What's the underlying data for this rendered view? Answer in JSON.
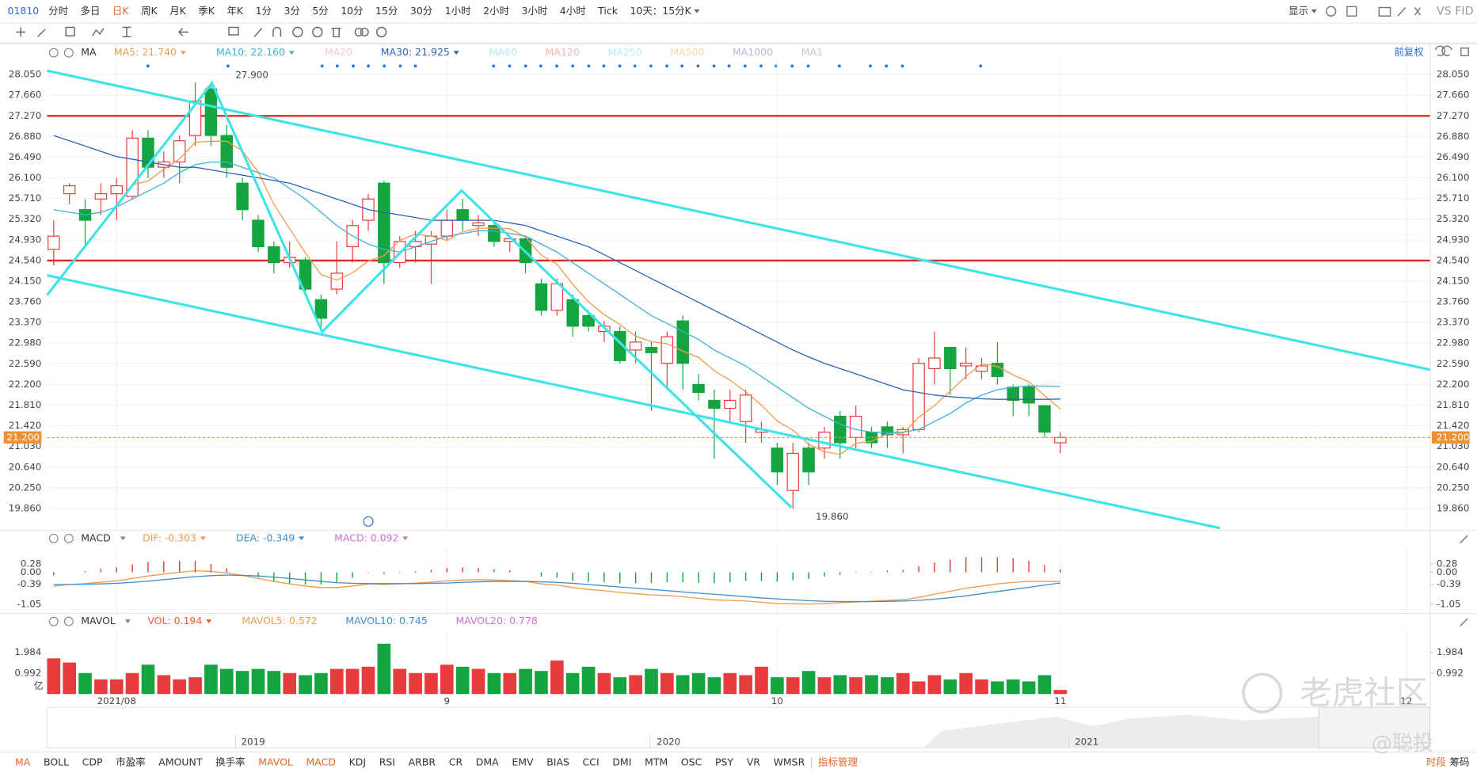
{
  "toolbar": {
    "symbol": "01810",
    "periods": [
      "分时",
      "多日",
      "日K",
      "周K",
      "月K",
      "季K",
      "年K",
      "1分",
      "3分",
      "5分",
      "10分",
      "15分",
      "30分",
      "1小时",
      "2小时",
      "3小时",
      "4小时",
      "Tick",
      "10天：15分K"
    ],
    "selected_period": 2,
    "display_menu": "显示",
    "compare": "VS FID"
  },
  "adjust_mode": "前复权",
  "x_axis": {
    "xlim": [
      -0.42,
      87.5
    ],
    "ticks": [
      {
        "value": 4,
        "label": "2021/08"
      },
      {
        "value": 25,
        "label": "9"
      },
      {
        "value": 46,
        "label": "10"
      },
      {
        "value": 64,
        "label": "11"
      },
      {
        "value": 86,
        "label": "12"
      }
    ]
  },
  "chart_data": [
    {
      "type": "candlestick",
      "title": "MA",
      "up_color": "#e83b3b",
      "down_color": "#14a541",
      "ylim": [
        19.49,
        28.3
      ],
      "yticks": [
        {
          "value": 28.05,
          "label": "28.050"
        },
        {
          "value": 27.66,
          "label": "27.660"
        },
        {
          "value": 27.27,
          "label": "27.270"
        },
        {
          "value": 26.88,
          "label": "26.880"
        },
        {
          "value": 26.49,
          "label": "26.490"
        },
        {
          "value": 26.1,
          "label": "26.100"
        },
        {
          "value": 25.71,
          "label": "25.710"
        },
        {
          "value": 25.32,
          "label": "25.320"
        },
        {
          "value": 24.93,
          "label": "24.930"
        },
        {
          "value": 24.54,
          "label": "24.540"
        },
        {
          "value": 24.15,
          "label": "24.150"
        },
        {
          "value": 23.76,
          "label": "23.760"
        },
        {
          "value": 23.37,
          "label": "23.370"
        },
        {
          "value": 22.98,
          "label": "22.980"
        },
        {
          "value": 22.59,
          "label": "22.590"
        },
        {
          "value": 22.2,
          "label": "22.200"
        },
        {
          "value": 21.81,
          "label": "21.810"
        },
        {
          "value": 21.42,
          "label": "21.420"
        },
        {
          "value": 21.03,
          "label": "21.030"
        },
        {
          "value": 20.64,
          "label": "20.640"
        },
        {
          "value": 20.25,
          "label": "20.250"
        },
        {
          "value": 19.86,
          "label": "19.860"
        }
      ],
      "levels": [
        27.27,
        24.54
      ],
      "level_color": "#d42a2a",
      "last_price": {
        "value": 21.2,
        "label": "21.200"
      },
      "annotations": [
        "27.900",
        "19.860"
      ],
      "candles": {
        "open": [
          24.75,
          25.8,
          25.5,
          25.7,
          25.8,
          25.75,
          26.85,
          26.3,
          26.4,
          26.9,
          27.78,
          26.9,
          26.0,
          25.3,
          24.8,
          24.5,
          24.55,
          23.8,
          24.0,
          24.8,
          25.3,
          26.0,
          24.5,
          24.8,
          24.85,
          25.0,
          25.5,
          25.2,
          25.2,
          24.9,
          24.95,
          24.1,
          23.6,
          23.8,
          23.5,
          23.2,
          23.2,
          22.85,
          22.9,
          22.6,
          23.4,
          22.2,
          21.9,
          21.75,
          21.5,
          21.3,
          21.0,
          20.2,
          21.0,
          21.0,
          21.6,
          21.2,
          21.3,
          21.4,
          21.25,
          21.35,
          22.5,
          22.9,
          22.55,
          22.45,
          22.6,
          22.15,
          22.15,
          21.8,
          21.1
        ],
        "high": [
          25.3,
          26.0,
          25.7,
          26.0,
          26.1,
          27.0,
          27.0,
          26.6,
          26.9,
          27.9,
          27.9,
          27.1,
          26.1,
          25.4,
          24.9,
          24.9,
          24.6,
          23.9,
          24.9,
          25.3,
          25.8,
          26.05,
          25.0,
          25.1,
          25.1,
          25.5,
          25.7,
          25.4,
          25.3,
          25.0,
          25.0,
          24.2,
          24.2,
          23.9,
          23.6,
          23.4,
          23.3,
          23.2,
          23.0,
          23.2,
          23.5,
          22.4,
          22.1,
          22.1,
          22.1,
          21.5,
          21.1,
          21.1,
          21.1,
          21.4,
          21.7,
          21.8,
          21.4,
          21.5,
          21.4,
          22.7,
          23.2,
          22.9,
          22.9,
          22.7,
          23.0,
          22.2,
          22.2,
          21.8,
          21.3
        ],
        "low": [
          24.45,
          25.6,
          24.8,
          25.4,
          25.3,
          25.7,
          26.1,
          26.1,
          26.0,
          26.7,
          26.7,
          26.1,
          25.3,
          24.7,
          24.3,
          24.4,
          23.9,
          23.2,
          23.9,
          24.5,
          25.1,
          24.1,
          24.4,
          24.5,
          24.1,
          24.9,
          25.1,
          25.0,
          24.8,
          24.7,
          24.3,
          23.5,
          23.5,
          23.1,
          23.2,
          23.0,
          22.6,
          22.6,
          21.7,
          22.1,
          22.1,
          21.9,
          20.8,
          21.5,
          21.1,
          21.1,
          20.3,
          19.86,
          20.3,
          20.8,
          20.8,
          21.0,
          21.0,
          21.0,
          20.9,
          21.3,
          22.2,
          22.0,
          22.3,
          22.3,
          22.2,
          21.6,
          21.6,
          21.2,
          20.9
        ],
        "close": [
          25.0,
          25.95,
          25.3,
          25.8,
          25.95,
          26.85,
          26.3,
          26.4,
          26.8,
          27.55,
          26.9,
          26.3,
          25.5,
          24.8,
          24.5,
          24.6,
          24.0,
          23.45,
          24.3,
          25.2,
          25.7,
          24.5,
          24.9,
          24.9,
          25.0,
          25.3,
          25.3,
          25.25,
          24.9,
          24.95,
          24.5,
          23.6,
          24.1,
          23.3,
          23.3,
          23.3,
          22.65,
          23.0,
          22.8,
          23.1,
          22.6,
          22.05,
          21.75,
          21.9,
          22.0,
          21.35,
          20.55,
          20.9,
          20.55,
          21.3,
          21.1,
          21.6,
          21.1,
          21.25,
          21.35,
          22.6,
          22.7,
          22.5,
          22.6,
          22.55,
          22.35,
          21.9,
          21.85,
          21.3,
          21.2
        ]
      },
      "series": [
        {
          "name": "MA5: 21.740",
          "color": "#f29a4a",
          "values": [
            null,
            null,
            null,
            null,
            25.6,
            25.97,
            26.04,
            26.26,
            26.46,
            26.77,
            26.79,
            26.79,
            26.61,
            26.21,
            25.6,
            25.14,
            24.68,
            24.27,
            24.17,
            24.31,
            24.53,
            24.63,
            24.92,
            25.04,
            25.0,
            24.92,
            25.08,
            25.15,
            25.15,
            25.14,
            24.98,
            24.64,
            24.47,
            24.09,
            23.76,
            23.52,
            23.33,
            23.11,
            23.01,
            22.97,
            22.83,
            22.71,
            22.46,
            22.28,
            22.06,
            21.81,
            21.51,
            21.34,
            21.07,
            20.93,
            20.88,
            21.09,
            21.13,
            21.27,
            21.28,
            21.58,
            21.8,
            22.07,
            22.35,
            22.59,
            22.54,
            22.38,
            22.25,
            21.99,
            21.74
          ]
        },
        {
          "name": "MA10: 22.160",
          "color": "#3cb4d8",
          "values": [
            25.5,
            25.45,
            25.4,
            25.45,
            25.55,
            25.7,
            25.85,
            26.0,
            26.2,
            26.35,
            26.4,
            26.4,
            26.3,
            26.2,
            26.1,
            25.9,
            25.7,
            25.45,
            25.2,
            25.0,
            24.85,
            24.75,
            24.7,
            24.8,
            24.9,
            25.0,
            25.05,
            25.1,
            25.1,
            25.05,
            25.0,
            24.85,
            24.7,
            24.5,
            24.3,
            24.1,
            23.9,
            23.7,
            23.5,
            23.35,
            23.2,
            23.05,
            22.85,
            22.7,
            22.55,
            22.35,
            22.15,
            21.95,
            21.75,
            21.6,
            21.45,
            21.35,
            21.3,
            21.3,
            21.3,
            21.35,
            21.5,
            21.65,
            21.85,
            22.0,
            22.1,
            22.15,
            22.17,
            22.17,
            22.16
          ]
        },
        {
          "name": "MA20",
          "color": "#f3c6e6"
        },
        {
          "name": "MA30: 21.925",
          "color": "#2a63b8",
          "values": [
            26.9,
            26.8,
            26.7,
            26.6,
            26.5,
            26.45,
            26.4,
            26.35,
            26.3,
            26.3,
            26.25,
            26.2,
            26.15,
            26.1,
            26.05,
            26.0,
            25.9,
            25.8,
            25.7,
            25.6,
            25.5,
            25.45,
            25.4,
            25.35,
            25.3,
            25.3,
            25.3,
            25.3,
            25.3,
            25.25,
            25.2,
            25.1,
            25.0,
            24.9,
            24.8,
            24.65,
            24.5,
            24.35,
            24.2,
            24.05,
            23.9,
            23.75,
            23.6,
            23.45,
            23.3,
            23.15,
            23.0,
            22.85,
            22.72,
            22.6,
            22.5,
            22.4,
            22.3,
            22.2,
            22.1,
            22.05,
            22.0,
            21.97,
            21.95,
            21.93,
            21.92,
            21.92,
            21.92,
            21.92,
            21.925
          ]
        },
        {
          "name": "MA60",
          "color": "#b6ecef"
        },
        {
          "name": "MA120",
          "color": "#f4b4b4"
        },
        {
          "name": "MA250",
          "color": "#b6eeee"
        },
        {
          "name": "MA500",
          "color": "#f3d9a4"
        },
        {
          "name": "MA1000",
          "color": "#b8b8de"
        },
        {
          "name": "MA1",
          "color": "#c6c6d6"
        }
      ]
    },
    {
      "type": "macd",
      "title": "MACD",
      "up_color": "#e83b3b",
      "down_color": "#14a541",
      "ylim": [
        -1.33,
        0.77
      ],
      "yticks": [
        0.28,
        {
          "value": 0,
          "label": "0.00"
        },
        -0.39,
        -1.05
      ],
      "series": [
        {
          "name": "DIF: -0.303",
          "color": "#f29a4a",
          "values": [
            -0.45,
            -0.4,
            -0.37,
            -0.32,
            -0.28,
            -0.2,
            -0.12,
            -0.06,
            0.0,
            0.05,
            0.03,
            -0.02,
            -0.1,
            -0.2,
            -0.3,
            -0.38,
            -0.45,
            -0.5,
            -0.5,
            -0.45,
            -0.38,
            -0.4,
            -0.38,
            -0.35,
            -0.32,
            -0.28,
            -0.25,
            -0.24,
            -0.25,
            -0.27,
            -0.3,
            -0.38,
            -0.42,
            -0.5,
            -0.56,
            -0.6,
            -0.66,
            -0.7,
            -0.74,
            -0.76,
            -0.8,
            -0.85,
            -0.9,
            -0.92,
            -0.94,
            -0.98,
            -1.02,
            -1.03,
            -1.04,
            -1.02,
            -1.0,
            -0.97,
            -0.95,
            -0.92,
            -0.9,
            -0.82,
            -0.72,
            -0.62,
            -0.52,
            -0.45,
            -0.38,
            -0.33,
            -0.3,
            -0.3,
            -0.303
          ]
        },
        {
          "name": "DEA: -0.349",
          "color": "#3c8fd0",
          "values": [
            -0.4,
            -0.4,
            -0.39,
            -0.38,
            -0.36,
            -0.33,
            -0.29,
            -0.24,
            -0.19,
            -0.14,
            -0.11,
            -0.09,
            -0.1,
            -0.12,
            -0.16,
            -0.2,
            -0.25,
            -0.3,
            -0.34,
            -0.36,
            -0.37,
            -0.37,
            -0.37,
            -0.37,
            -0.36,
            -0.35,
            -0.33,
            -0.31,
            -0.3,
            -0.3,
            -0.3,
            -0.31,
            -0.33,
            -0.36,
            -0.4,
            -0.44,
            -0.48,
            -0.52,
            -0.56,
            -0.6,
            -0.64,
            -0.68,
            -0.72,
            -0.76,
            -0.8,
            -0.84,
            -0.87,
            -0.9,
            -0.93,
            -0.95,
            -0.96,
            -0.96,
            -0.96,
            -0.95,
            -0.94,
            -0.92,
            -0.88,
            -0.83,
            -0.77,
            -0.7,
            -0.63,
            -0.56,
            -0.49,
            -0.42,
            -0.349
          ]
        },
        {
          "name": "MACD: 0.092",
          "color": "#d070d0",
          "histogram": true,
          "values": [
            -0.1,
            0,
            0.04,
            0.12,
            0.16,
            0.26,
            0.34,
            0.36,
            0.38,
            0.38,
            0.28,
            0.14,
            0,
            -0.16,
            -0.28,
            -0.36,
            -0.4,
            -0.4,
            -0.32,
            -0.18,
            -0.02,
            -0.06,
            -0.02,
            0.04,
            0.08,
            0.14,
            0.16,
            0.14,
            0.1,
            0.06,
            0,
            -0.14,
            -0.18,
            -0.28,
            -0.32,
            -0.32,
            -0.36,
            -0.36,
            -0.36,
            -0.32,
            -0.32,
            -0.34,
            -0.36,
            -0.32,
            -0.28,
            -0.28,
            -0.3,
            -0.26,
            -0.22,
            -0.14,
            -0.08,
            -0.02,
            0.02,
            0.06,
            0.08,
            0.2,
            0.32,
            0.42,
            0.5,
            0.5,
            0.5,
            0.46,
            0.38,
            0.24,
            0.092
          ]
        }
      ]
    },
    {
      "type": "bar",
      "title": "MAVOL",
      "unit": "亿",
      "up_color": "#e83b3b",
      "down_color": "#14a541",
      "ylim": [
        0,
        2.97
      ],
      "yticks": [
        1.984,
        0.992
      ],
      "series": [
        {
          "name": "VOL: 0.194",
          "color": "#e8603a",
          "values": [
            1.7,
            1.5,
            1.0,
            0.7,
            0.7,
            1.0,
            1.4,
            0.9,
            0.7,
            0.8,
            1.4,
            1.2,
            1.1,
            1.2,
            1.1,
            1.0,
            0.9,
            1.0,
            1.2,
            1.2,
            1.3,
            2.4,
            1.2,
            1.0,
            1.0,
            1.4,
            1.3,
            1.2,
            1.0,
            1.0,
            1.2,
            1.1,
            1.6,
            1.0,
            1.3,
            1.0,
            0.8,
            0.9,
            1.2,
            1.0,
            0.9,
            1.0,
            0.8,
            1.0,
            0.9,
            1.3,
            0.8,
            0.8,
            1.1,
            0.8,
            0.9,
            0.8,
            0.9,
            0.8,
            1.0,
            0.6,
            0.9,
            0.7,
            1.0,
            0.7,
            0.6,
            0.7,
            0.6,
            0.9,
            0.194
          ]
        },
        {
          "name": "MAVOL5: 0.572",
          "color": "#f29a4a"
        },
        {
          "name": "MAVOL10: 0.745",
          "color": "#3c8fd0"
        },
        {
          "name": "MAVOL20: 0.778",
          "color": "#d070d0"
        }
      ]
    }
  ],
  "navigator": {
    "years": [
      "2019",
      "2020",
      "2021"
    ]
  },
  "indicators": {
    "items": [
      "MA",
      "BOLL",
      "CDP",
      "市盈率",
      "AMOUNT",
      "换手率",
      "MAVOL",
      "MACD",
      "KDJ",
      "RSI",
      "ARBR",
      "CR",
      "DMA",
      "EMV",
      "BIAS",
      "CCI",
      "DMI",
      "MTM",
      "OSC",
      "PSY",
      "VR",
      "WMSR"
    ],
    "selected": [
      0,
      6,
      7
    ],
    "manage": "指标管理",
    "right": [
      "时段",
      "筹码"
    ]
  },
  "watermark": {
    "brand": "老虎社区",
    "author": "@聪投"
  }
}
